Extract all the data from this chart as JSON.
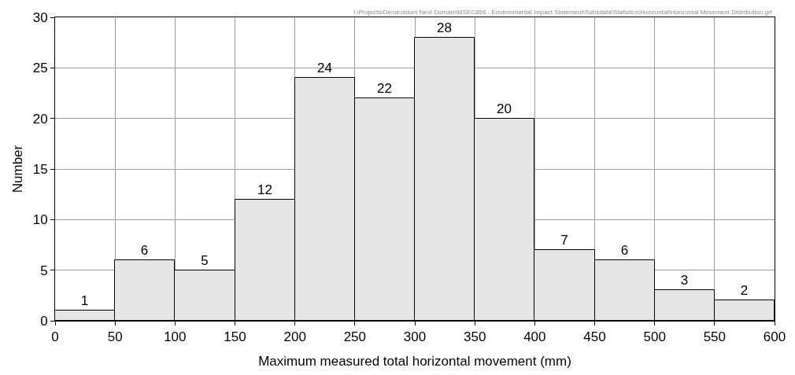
{
  "chart_data": {
    "type": "histogram",
    "xlabel": "Maximum measured total horizontal movement (mm)",
    "ylabel": "Number",
    "bins": [
      0,
      50,
      100,
      150,
      200,
      250,
      300,
      350,
      400,
      450,
      500,
      550,
      600
    ],
    "values": [
      1,
      6,
      5,
      12,
      24,
      22,
      28,
      20,
      7,
      6,
      3,
      2
    ],
    "color": "#e6e6e6",
    "data_labels": true,
    "xlim": [
      0,
      600
    ],
    "xticks": [
      0,
      50,
      100,
      150,
      200,
      250,
      300,
      350,
      400,
      450,
      500,
      550,
      600
    ],
    "ylim": [
      0,
      30
    ],
    "yticks": [
      0,
      5,
      10,
      15,
      20,
      25,
      30
    ],
    "grid": true,
    "annotations": [
      "I:\\Projects\\Dendrobium Next Domain\\MSEC856 - Environmental Impact Statement\\Subsdata\\Statistics\\Horizontal\\Horizontal Movement Distribution.grf"
    ]
  }
}
